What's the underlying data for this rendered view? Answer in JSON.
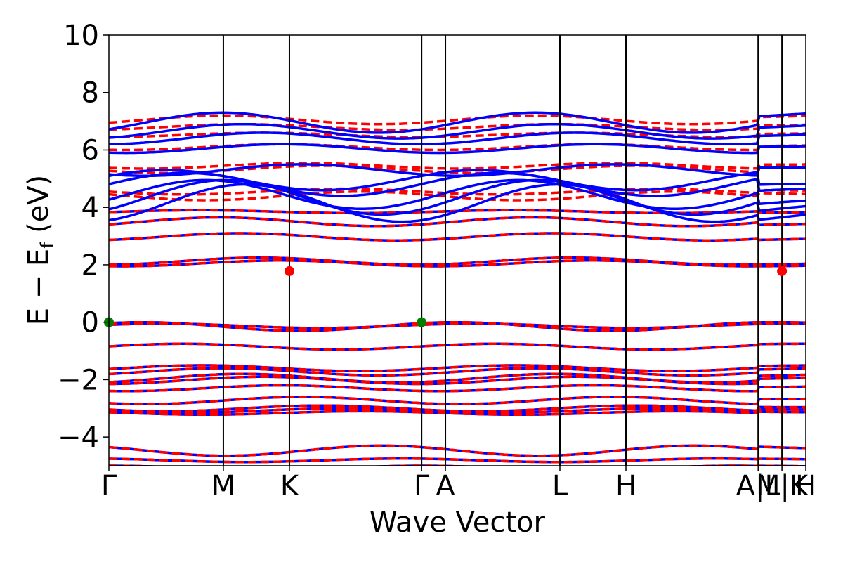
{
  "chart_data": {
    "type": "line",
    "title": "",
    "xlabel": "Wave Vector",
    "ylabel": "E − E",
    "ylabel_sub": "f",
    "ylabel_unit": " (eV)",
    "ylim": [
      -5,
      10
    ],
    "y_ticks": [
      {
        "value": 10,
        "label": "10"
      },
      {
        "value": 8,
        "label": "8"
      },
      {
        "value": 6,
        "label": "6"
      },
      {
        "value": 4,
        "label": "4"
      },
      {
        "value": 2,
        "label": "2"
      },
      {
        "value": 0,
        "label": "0"
      },
      {
        "value": -2,
        "label": "−2"
      },
      {
        "value": -4,
        "label": "−4"
      }
    ],
    "k_points": [
      {
        "label": "Γ",
        "position": 0.0
      },
      {
        "label": "M",
        "position": 1.0
      },
      {
        "label": "K",
        "position": 1.577
      },
      {
        "label": "Γ",
        "position": 2.732
      },
      {
        "label": "A",
        "position": 2.94
      },
      {
        "label": "L",
        "position": 3.94
      },
      {
        "label": "H",
        "position": 4.517
      },
      {
        "label": "A|L",
        "position": 5.672
      },
      {
        "label": "M|K",
        "position": 5.88
      },
      {
        "label": "H",
        "position": 6.088
      }
    ],
    "x_range": [
      0,
      6.088
    ],
    "grid": false,
    "series": [
      {
        "role": "spin-up",
        "color": "#0000ff",
        "style": "solid"
      },
      {
        "role": "spin-down",
        "color": "#ff0000",
        "style": "dashed"
      }
    ],
    "bands": [
      {
        "kind": "valence",
        "start": -5.0,
        "amp": 0.15
      },
      {
        "kind": "valence",
        "start": -4.75,
        "amp": 0.12
      },
      {
        "kind": "valence",
        "start": -4.3,
        "amp": 0.35
      },
      {
        "kind": "valence",
        "start": -3.1,
        "amp": 0.12
      },
      {
        "kind": "valence",
        "start": -3.0,
        "amp": 0.15
      },
      {
        "kind": "valence",
        "start": -2.9,
        "amp": 0.2
      },
      {
        "kind": "valence",
        "start": -2.6,
        "amp": 0.25
      },
      {
        "kind": "valence",
        "start": -2.2,
        "amp": 0.2
      },
      {
        "kind": "valence",
        "start": -1.9,
        "amp": 0.25
      },
      {
        "kind": "valence",
        "start": -1.8,
        "amp": 0.3
      },
      {
        "kind": "valence",
        "start": -1.6,
        "amp": 0.25
      },
      {
        "kind": "valence",
        "start": -1.5,
        "amp": 0.2
      },
      {
        "kind": "valence",
        "start": -0.75,
        "amp": 0.2
      },
      {
        "kind": "valence",
        "start": -0.05,
        "amp": 0.15
      },
      {
        "kind": "valence",
        "start": 0.0,
        "amp": 0.3
      },
      {
        "kind": "conduction",
        "start": 1.95,
        "amp": 0.2
      },
      {
        "kind": "conduction",
        "start": 2.0,
        "amp": 0.25
      },
      {
        "kind": "conduction",
        "start": 2.85,
        "amp": 0.25
      },
      {
        "kind": "conduction",
        "start": 3.35,
        "amp": 0.3
      },
      {
        "kind": "conduction",
        "start": 3.8,
        "amp": 0.1
      }
    ],
    "spin_up_upper": [
      {
        "start": 3.5,
        "amp": 1.3
      },
      {
        "start": 3.75,
        "amp": 1.2
      },
      {
        "start": 3.95,
        "amp": 1.0
      },
      {
        "start": 4.4,
        "amp": 0.8
      },
      {
        "start": 4.6,
        "amp": 0.7
      },
      {
        "start": 5.5,
        "amp": 0.4
      },
      {
        "start": 6.2,
        "amp": 0.3
      },
      {
        "start": 6.6,
        "amp": 0.4
      },
      {
        "start": 6.9,
        "amp": 0.5
      },
      {
        "start": 7.3,
        "amp": 0.7
      }
    ],
    "spin_down_upper": [
      {
        "start": 4.55,
        "amp": 0.3
      },
      {
        "start": 4.65,
        "amp": 0.2
      },
      {
        "start": 5.45,
        "amp": 0.25
      },
      {
        "start": 5.55,
        "amp": 0.2
      },
      {
        "start": 6.2,
        "amp": 0.2
      },
      {
        "start": 6.6,
        "amp": 0.15
      },
      {
        "start": 6.9,
        "amp": 0.2
      },
      {
        "start": 7.2,
        "amp": 0.3
      }
    ],
    "markers": [
      {
        "type": "VBM",
        "color": "#007f00",
        "x": 0.0,
        "y": 0.0
      },
      {
        "type": "VBM",
        "color": "#007f00",
        "x": 2.732,
        "y": 0.0
      },
      {
        "type": "CBM",
        "color": "#ff0000",
        "x": 1.577,
        "y": 1.78
      },
      {
        "type": "CBM",
        "color": "#ff0000",
        "x": 5.88,
        "y": 1.78
      }
    ]
  }
}
